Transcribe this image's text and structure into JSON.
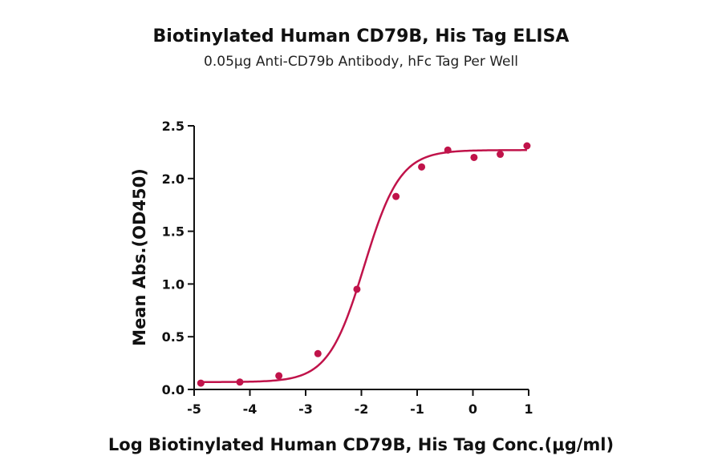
{
  "chart_data": {
    "type": "scatter",
    "title": "Biotinylated Human CD79B, His Tag ELISA",
    "subtitle": "0.05μg Anti-CD79b Antibody, hFc Tag Per Well",
    "xlabel": "Log Biotinylated Human CD79B, His Tag Conc.(μg/ml)",
    "ylabel": "Mean Abs.(OD450)",
    "xlim": [
      -5,
      1
    ],
    "ylim": [
      0,
      2.5
    ],
    "x_ticks": [
      "-5",
      "-4",
      "-3",
      "-2",
      "-1",
      "0",
      "1"
    ],
    "y_ticks": [
      "0.0",
      "0.5",
      "1.0",
      "1.5",
      "2.0",
      "2.5"
    ],
    "grid": false,
    "series": [
      {
        "points": [
          {
            "x": -4.88,
            "y": 0.06
          },
          {
            "x": -4.18,
            "y": 0.07
          },
          {
            "x": -3.48,
            "y": 0.13
          },
          {
            "x": -2.78,
            "y": 0.34
          },
          {
            "x": -2.08,
            "y": 0.95
          },
          {
            "x": -1.38,
            "y": 1.83
          },
          {
            "x": -0.92,
            "y": 2.11
          },
          {
            "x": -0.45,
            "y": 2.27
          },
          {
            "x": 0.02,
            "y": 2.2
          },
          {
            "x": 0.49,
            "y": 2.23
          },
          {
            "x": 0.97,
            "y": 2.31
          }
        ],
        "fit": {
          "model": "4PL",
          "bottom": 0.07,
          "top": 2.27,
          "logEC50": -1.95,
          "hill": 1.35
        }
      }
    ],
    "colors": {
      "series": "#c0134a",
      "axis": "#111111"
    }
  }
}
